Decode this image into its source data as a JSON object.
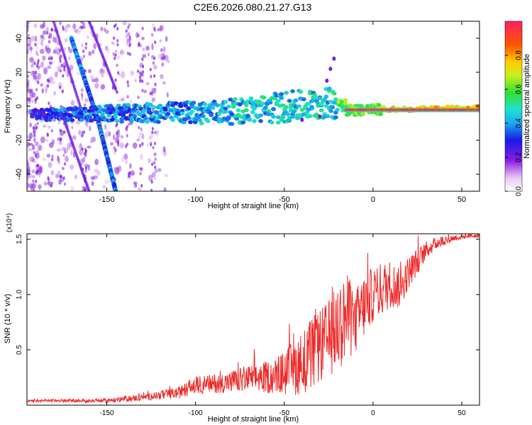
{
  "title": "C2E6.2026.080.21.27.G13",
  "colors": {
    "snr_line": "#ee2a2a",
    "spectro_background": "#ffffff",
    "axis": "#000000"
  },
  "chart_data": [
    {
      "type": "heatmap",
      "title": "C2E6.2026.080.21.27.G13",
      "xlabel": "Height of straight line (km)",
      "ylabel": "Frequency (Hz)",
      "xlim": [
        -195,
        60
      ],
      "ylim": [
        -50,
        50
      ],
      "xticks": [
        -150,
        -100,
        -50,
        0,
        50
      ],
      "yticks": [
        -40,
        -20,
        0,
        20,
        40
      ],
      "colorbar": {
        "label": "Normalized spectral amplitude",
        "range": [
          0,
          1
        ],
        "ticks": [
          0.0,
          0.2,
          0.4,
          0.6,
          0.8
        ]
      },
      "features": [
        {
          "name": "main carrier",
          "x_range": [
            -190,
            60
          ],
          "frequency_start": -5,
          "frequency_end": -1,
          "peak_amplitude": 1.0
        },
        {
          "name": "oblique trace 1",
          "x_start": -170,
          "freq_start": 40,
          "x_end": -155,
          "freq_end": -8
        },
        {
          "name": "oblique trace 2",
          "x_start": -155,
          "freq_start": -8,
          "x_end": -145,
          "freq_end": -50
        }
      ]
    },
    {
      "type": "line",
      "xlabel": "Height of straight line (km)",
      "ylabel": "SNR (10 * v/v)",
      "yscale_label": "(x10⁴)",
      "xlim": [
        -195,
        60
      ],
      "ylim": [
        0,
        1.55
      ],
      "xticks": [
        -150,
        -100,
        -50,
        0,
        50
      ],
      "yticks": [
        0.5,
        1.0,
        1.5
      ],
      "series": [
        {
          "name": "SNR",
          "envelope_x": [
            -195,
            -150,
            -130,
            -110,
            -100,
            -85,
            -70,
            -55,
            -45,
            -35,
            -25,
            -20,
            -15,
            -10,
            -5,
            0,
            5,
            10,
            15,
            20,
            25,
            30,
            35,
            40,
            45,
            50,
            55,
            60
          ],
          "envelope_y": [
            0.04,
            0.04,
            0.07,
            0.11,
            0.18,
            0.2,
            0.24,
            0.26,
            0.33,
            0.45,
            0.6,
            0.7,
            0.8,
            0.75,
            0.9,
            1.0,
            1.05,
            1.1,
            1.05,
            1.2,
            1.3,
            1.4,
            1.46,
            1.49,
            1.51,
            1.52,
            1.53,
            1.53
          ],
          "spread_y": [
            0.01,
            0.02,
            0.03,
            0.05,
            0.08,
            0.09,
            0.12,
            0.16,
            0.25,
            0.33,
            0.35,
            0.4,
            0.4,
            0.3,
            0.3,
            0.25,
            0.25,
            0.22,
            0.18,
            0.15,
            0.12,
            0.08,
            0.06,
            0.05,
            0.03,
            0.02,
            0.02,
            0.02
          ]
        }
      ]
    }
  ]
}
